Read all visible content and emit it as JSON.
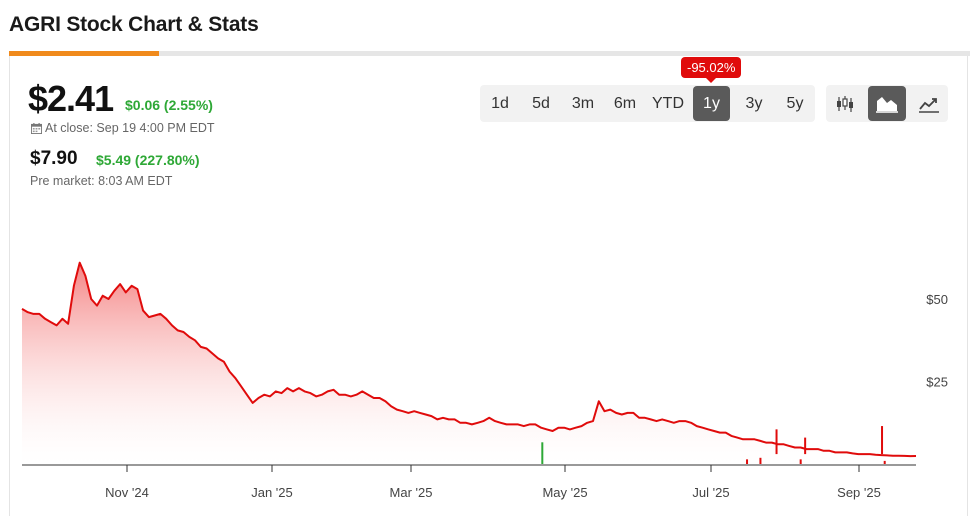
{
  "page": {
    "title": "AGRI Stock Chart & Stats"
  },
  "quote": {
    "price": "$2.41",
    "change": "$0.06 (2.55%)",
    "close_label": "At close: Sep 19 4:00 PM EDT",
    "pre_price": "$7.90",
    "pre_change": "$5.49 (227.80%)",
    "pre_label": "Pre market: 8:03 AM EDT"
  },
  "range_selector": {
    "options": [
      "1d",
      "5d",
      "3m",
      "6m",
      "YTD",
      "1y",
      "3y",
      "5y"
    ],
    "selected": "1y",
    "performance_badge": "-95.02%"
  },
  "chart_type_selector": {
    "options": [
      {
        "icon": "candlestick-icon",
        "active": false
      },
      {
        "icon": "area-chart-icon",
        "active": true
      },
      {
        "icon": "line-chart-icon",
        "active": false
      }
    ]
  },
  "colors": {
    "line": "#e00b0b",
    "area_top": "#f47c7c",
    "positive": "#2ea836",
    "badge": "#e00b0b",
    "accent": "#f08a1c"
  },
  "chart_data": {
    "type": "area",
    "x_ticks": [
      "Nov '24",
      "Jan '25",
      "Mar '25",
      "May '25",
      "Jul '25",
      "Sep '25"
    ],
    "y_ticks": [
      {
        "label": "$50",
        "value": 50
      },
      {
        "label": "$25",
        "value": 25
      }
    ],
    "ylim": [
      0,
      75
    ],
    "series": [
      {
        "values": [
          47,
          46,
          45.5,
          45.5,
          44,
          43,
          42,
          44,
          42.5,
          54,
          61,
          57,
          50,
          48,
          51,
          50,
          52.5,
          54.5,
          52,
          54,
          53,
          46.5,
          44.5,
          45,
          45.5,
          44,
          42,
          40.5,
          40,
          38.5,
          37.5,
          35.5,
          35,
          33.5,
          32,
          31,
          28,
          26,
          23.5,
          21,
          18.5,
          20,
          21,
          20.5,
          22,
          21.5,
          23,
          22,
          23,
          22,
          21.5,
          20.5,
          21,
          22,
          22.5,
          21,
          21,
          20.5,
          21,
          22,
          21,
          20,
          20,
          19,
          17.5,
          16.5,
          16,
          15.5,
          16,
          15.5,
          15,
          14.5,
          13.5,
          14,
          13.5,
          13.5,
          12.5,
          12.5,
          12,
          12.5,
          13,
          14,
          13,
          12.5,
          12,
          12,
          12,
          11.5,
          12,
          12,
          11,
          10.5,
          10,
          11,
          11,
          10.5,
          11,
          11.5,
          12.5,
          13,
          19,
          16,
          16.5,
          15.5,
          15,
          15.5,
          15.5,
          14,
          14,
          13.5,
          13,
          13.5,
          13,
          12.5,
          13,
          13,
          12.5,
          11.5,
          11,
          10.5,
          10,
          9.5,
          9.5,
          8.5,
          8,
          7.5,
          7.5,
          7.5,
          7,
          6.5,
          6.5,
          6,
          6,
          5.5,
          5,
          5,
          4.5,
          4.5,
          4.5,
          4,
          4,
          3.5,
          3.5,
          3.5,
          3.2,
          3,
          3,
          3,
          2.8,
          2.7,
          2.6,
          2.5,
          2.5,
          2.45,
          2.4,
          2.41
        ]
      }
    ],
    "spikes": [
      {
        "at": 0.844,
        "value": 10.5
      },
      {
        "at": 0.876,
        "value": 8
      },
      {
        "at": 0.962,
        "value": 11.5
      }
    ],
    "volume_bars": [
      {
        "at": 0.582,
        "value": 7,
        "color": "#2ea836"
      },
      {
        "at": 0.811,
        "value": 1.5,
        "color": "#e00b0b"
      },
      {
        "at": 0.826,
        "value": 2,
        "color": "#e00b0b"
      },
      {
        "at": 0.871,
        "value": 1.5,
        "color": "#e00b0b"
      },
      {
        "at": 0.965,
        "value": 1,
        "color": "#e00b0b"
      }
    ]
  }
}
